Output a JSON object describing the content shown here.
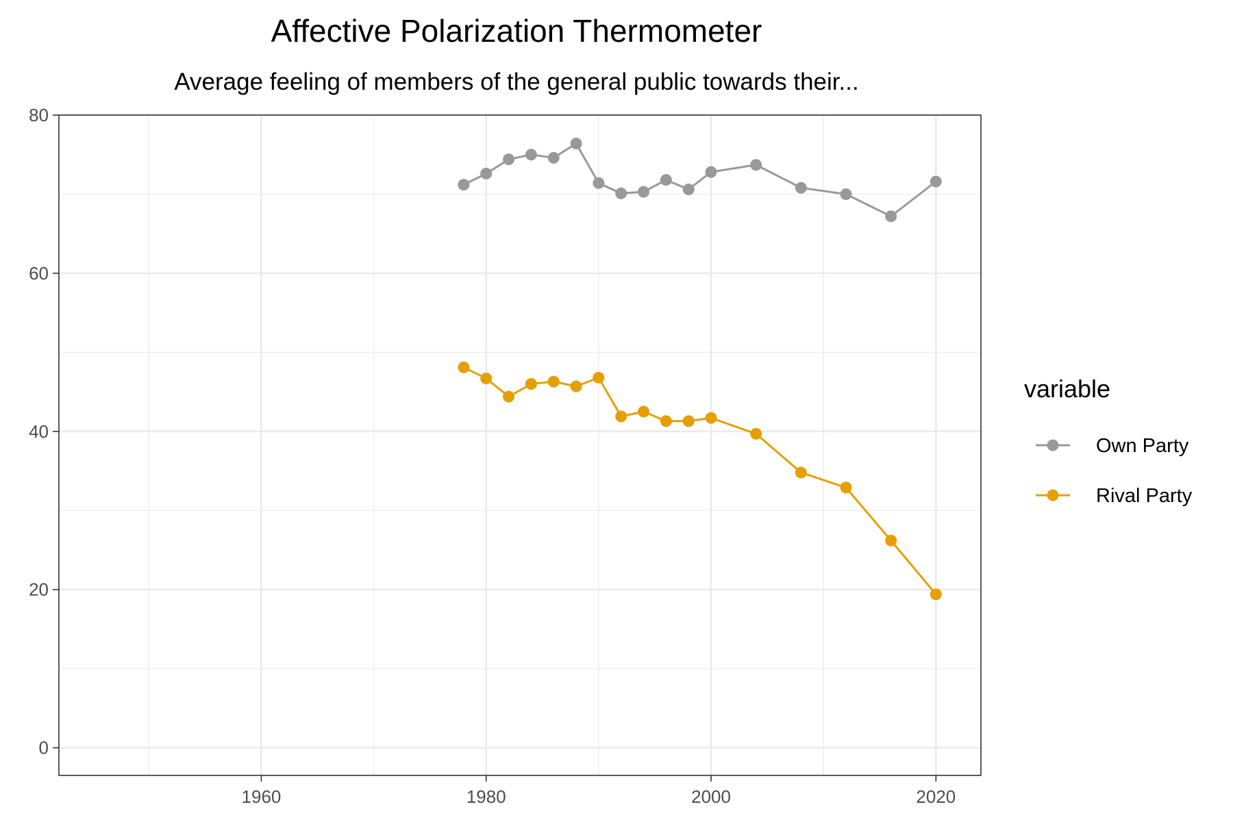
{
  "chart_data": {
    "type": "line",
    "title": "Affective Polarization Thermometer",
    "subtitle": "Average feeling of members of the general public towards their...",
    "xlabel": "",
    "ylabel": "",
    "xlim": [
      1942,
      2024
    ],
    "ylim": [
      -3.5,
      80
    ],
    "x_ticks": [
      1960,
      1980,
      2000,
      2020
    ],
    "x_minor": [
      1950,
      1970,
      1990,
      2010
    ],
    "y_ticks": [
      0,
      20,
      40,
      60,
      80
    ],
    "y_minor": [
      10,
      30,
      50,
      70
    ],
    "grid": true,
    "legend": {
      "title": "variable",
      "position": "right"
    },
    "series": [
      {
        "name": "Own Party",
        "color": "#999999",
        "points": [
          {
            "x": 1978,
            "y": 71.2
          },
          {
            "x": 1980,
            "y": 72.6
          },
          {
            "x": 1982,
            "y": 74.4
          },
          {
            "x": 1984,
            "y": 75.0
          },
          {
            "x": 1986,
            "y": 74.6
          },
          {
            "x": 1988,
            "y": 76.4
          },
          {
            "x": 1990,
            "y": 71.4
          },
          {
            "x": 1992,
            "y": 70.1
          },
          {
            "x": 1994,
            "y": 70.3
          },
          {
            "x": 1996,
            "y": 71.8
          },
          {
            "x": 1998,
            "y": 70.6
          },
          {
            "x": 2000,
            "y": 72.8
          },
          {
            "x": 2004,
            "y": 73.7
          },
          {
            "x": 2008,
            "y": 70.8
          },
          {
            "x": 2012,
            "y": 70.0
          },
          {
            "x": 2016,
            "y": 67.2
          },
          {
            "x": 2020,
            "y": 71.6
          }
        ]
      },
      {
        "name": "Rival Party",
        "color": "#E69F00",
        "points": [
          {
            "x": 1978,
            "y": 48.1
          },
          {
            "x": 1980,
            "y": 46.7
          },
          {
            "x": 1982,
            "y": 44.4
          },
          {
            "x": 1984,
            "y": 46.0
          },
          {
            "x": 1986,
            "y": 46.3
          },
          {
            "x": 1988,
            "y": 45.7
          },
          {
            "x": 1990,
            "y": 46.8
          },
          {
            "x": 1992,
            "y": 41.9
          },
          {
            "x": 1994,
            "y": 42.5
          },
          {
            "x": 1996,
            "y": 41.3
          },
          {
            "x": 1998,
            "y": 41.3
          },
          {
            "x": 2000,
            "y": 41.7
          },
          {
            "x": 2004,
            "y": 39.7
          },
          {
            "x": 2008,
            "y": 34.8
          },
          {
            "x": 2012,
            "y": 32.9
          },
          {
            "x": 2016,
            "y": 26.2
          },
          {
            "x": 2020,
            "y": 19.4
          }
        ]
      }
    ]
  }
}
